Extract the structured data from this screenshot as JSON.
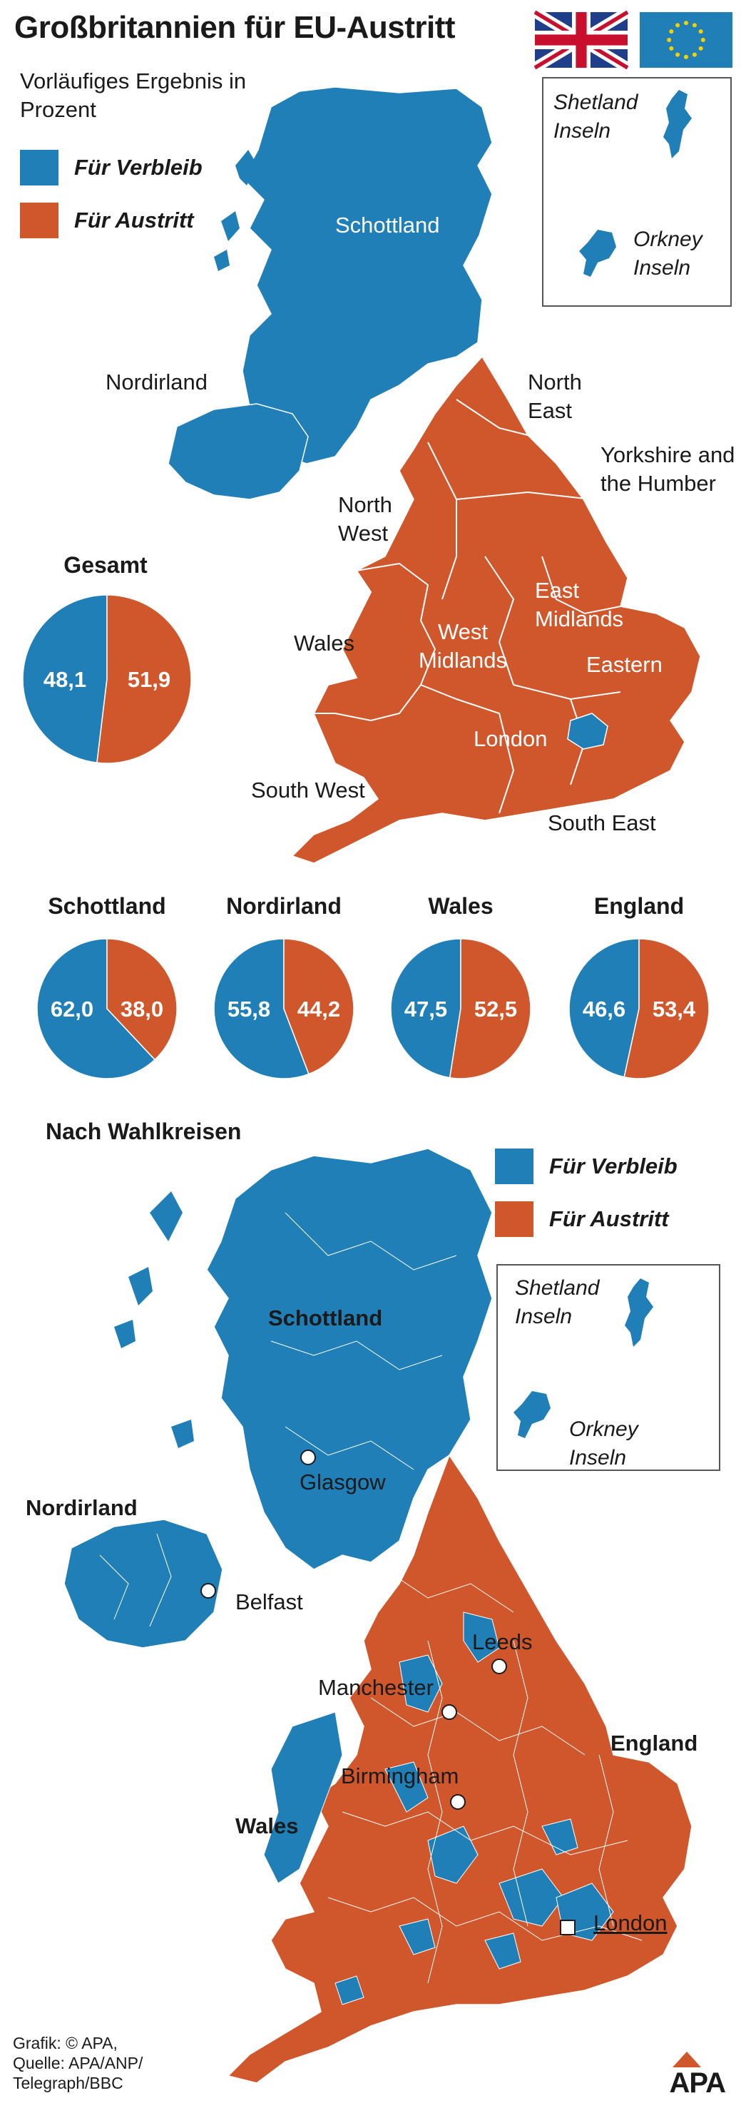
{
  "header": {
    "title": "Großbritannien für EU-Austritt",
    "subtitle": "Vorläufiges Ergebnis in Prozent"
  },
  "colors": {
    "remain": "#1f7fb6",
    "leave": "#d0572b"
  },
  "legend": {
    "remain": "Für Verbleib",
    "leave": "Für Austritt"
  },
  "flags": [
    "uk-flag",
    "eu-flag"
  ],
  "top_map": {
    "regions": {
      "scotland": "Schottland",
      "northern_ireland": "Nordirland",
      "north_east": "North East",
      "yorkshire": "Yorkshire and the Humber",
      "north_west": "North West",
      "wales": "Wales",
      "west_midlands": "West Midlands",
      "east_midlands": "East Midlands",
      "eastern": "Eastern",
      "london": "London",
      "south_west": "South West",
      "south_east": "South East"
    },
    "inset": {
      "shetland": "Shetland Inseln",
      "orkney": "Orkney Inseln"
    }
  },
  "pies": {
    "total": {
      "title": "Gesamt",
      "remain": "48,1",
      "leave": "51,9",
      "remain_pct": 48.1
    },
    "regions": [
      {
        "title": "Schottland",
        "remain": "62,0",
        "leave": "38,0",
        "remain_pct": 62.0
      },
      {
        "title": "Nordirland",
        "remain": "55,8",
        "leave": "44,2",
        "remain_pct": 55.8
      },
      {
        "title": "Wales",
        "remain": "47,5",
        "leave": "52,5",
        "remain_pct": 47.5
      },
      {
        "title": "England",
        "remain": "46,6",
        "leave": "53,4",
        "remain_pct": 46.6
      }
    ]
  },
  "bottom_map": {
    "title": "Nach Wahlkreisen",
    "regions": {
      "scotland": "Schottland",
      "northern_ireland": "Nordirland",
      "wales": "Wales",
      "england": "England"
    },
    "cities": {
      "glasgow": "Glasgow",
      "belfast": "Belfast",
      "leeds": "Leeds",
      "manchester": "Manchester",
      "birmingham": "Birmingham",
      "london": "London"
    },
    "inset": {
      "shetland": "Shetland Inseln",
      "orkney": "Orkney Inseln"
    }
  },
  "footer": {
    "line1": "Grafik: © APA,",
    "line2": "Quelle: APA/ANP/",
    "line3": "Telegraph/BBC",
    "logo": "APA"
  }
}
